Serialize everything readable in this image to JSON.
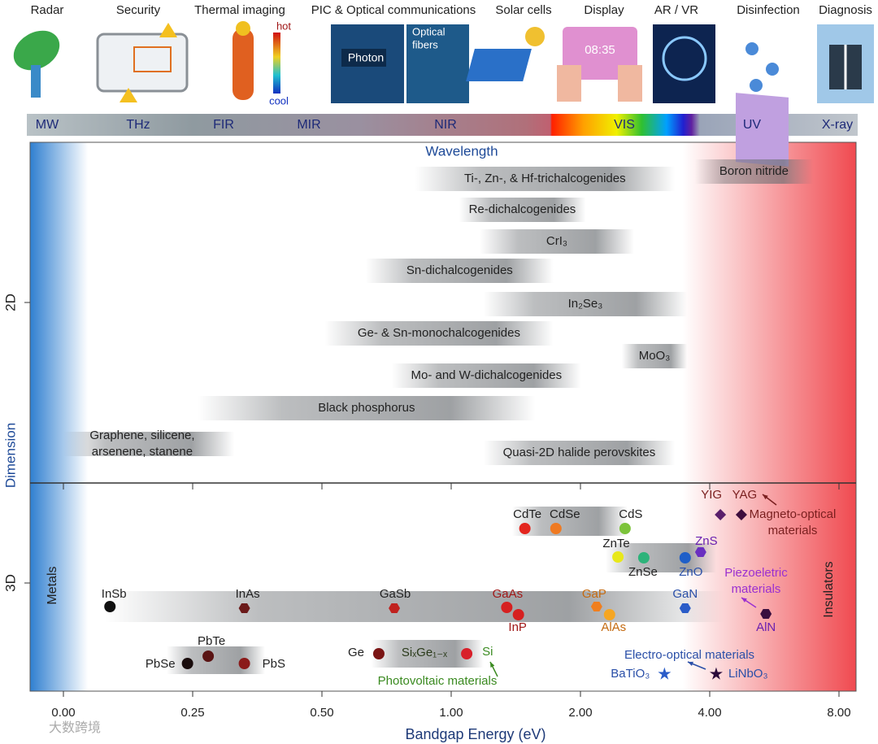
{
  "applications": [
    "Radar",
    "Security",
    "Thermal imaging",
    "PIC & Optical communications",
    "Solar cells",
    "Display",
    "AR / VR",
    "Disinfection",
    "Diagnosis"
  ],
  "icon_texts": {
    "hot": "hot",
    "cool": "cool",
    "photon": "Photon",
    "fibers": [
      "Optical",
      "fibers"
    ],
    "clock": "08:35"
  },
  "spectrum": [
    "MW",
    "THz",
    "FIR",
    "MIR",
    "NIR",
    "VIS",
    "UV",
    "X-ray"
  ],
  "watermark": "大数跨境",
  "chart_data": {
    "type": "bandgap-map",
    "x_label": "Bandgap Energy (eV)",
    "y_label": "Dimension",
    "top_label": "Wavelength",
    "left_label": "Metals",
    "right_label": "Insulators",
    "categories": [
      "2D",
      "3D"
    ],
    "xlim": [
      -0.065,
      8.53
    ],
    "xticks": [
      {
        "value": 0,
        "label": "0.00"
      },
      {
        "value": 0.25,
        "label": "0.25"
      },
      {
        "value": 0.5,
        "label": "0.50"
      },
      {
        "value": 1,
        "label": "1.00"
      },
      {
        "value": 2,
        "label": "2.00"
      },
      {
        "value": 4,
        "label": "4.00"
      },
      {
        "value": 8,
        "label": "8.00"
      }
    ],
    "ranges_2d": [
      {
        "name": "Ti-, Zn-, & Hf-trichalcogenides",
        "range": [
          0.86,
          3.46
        ]
      },
      {
        "name": "Boron nitride",
        "range": [
          3.77,
          7.2
        ]
      },
      {
        "name": "Re-dichalcogenides",
        "range": [
          1.06,
          2.08
        ]
      },
      {
        "name": "CrI₃",
        "range": [
          1.22,
          2.83
        ]
      },
      {
        "name": "Sn-dichalcogenides",
        "range": [
          0.67,
          1.79
        ]
      },
      {
        "name": "In₂Se₃",
        "range": [
          1.25,
          3.65
        ]
      },
      {
        "name": "Ge- & Sn-monochalcogenides",
        "range": [
          0.51,
          1.79
        ]
      },
      {
        "name": "MoO₃",
        "range": [
          2.64,
          3.65
        ]
      },
      {
        "name": "Mo- and W-dichalcogenides",
        "range": [
          0.77,
          2.01
        ]
      },
      {
        "name": "Black phosphorus",
        "range": [
          0.26,
          1.65
        ]
      },
      {
        "name": [
          "Graphene, silicene,",
          "arsenene, stanene"
        ],
        "range": [
          0.0,
          0.33
        ]
      },
      {
        "name": "Quasi-2D halide perovskites",
        "range": [
          1.25,
          3.46
        ]
      }
    ],
    "bands_3d": [
      {
        "range": [
          0.08,
          4.43
        ]
      },
      {
        "range": [
          0.2,
          0.39
        ]
      },
      {
        "range": [
          0.69,
          1.25
        ]
      },
      {
        "range": [
          1.47,
          2.73
        ]
      },
      {
        "range": [
          2.39,
          4.2
        ]
      }
    ],
    "materials": [
      {
        "name": "InSb",
        "bandgap": 0.09,
        "marker": "circle",
        "color": "#111111",
        "label_color": "#222222"
      },
      {
        "name": "InAs",
        "bandgap": 0.35,
        "marker": "hexagon",
        "color": "#6b1a1a",
        "label_color": "#222222"
      },
      {
        "name": "GaSb",
        "bandgap": 0.78,
        "marker": "hexagon",
        "color": "#c0221f",
        "label_color": "#222222"
      },
      {
        "name": "GaAs",
        "bandgap": 1.43,
        "marker": "circle",
        "color": "#d62020",
        "label_color": "#a01818"
      },
      {
        "name": "InP",
        "bandgap": 1.52,
        "marker": "circle",
        "color": "#d62020",
        "label_color": "#a01818"
      },
      {
        "name": "GaP",
        "bandgap": 2.25,
        "marker": "hexagon",
        "color": "#f07f1f",
        "label_color": "#c46a10"
      },
      {
        "name": "AlAs",
        "bandgap": 2.45,
        "marker": "circle",
        "color": "#f5a623",
        "label_color": "#c46a10"
      },
      {
        "name": "GaN",
        "bandgap": 3.62,
        "marker": "hexagon",
        "color": "#2a5cc8",
        "label_color": "#2a4fa8"
      },
      {
        "name": "AlN",
        "bandgap": 5.74,
        "marker": "hexagon",
        "color": "#3a0f3f",
        "label_color": "#6a20b0"
      },
      {
        "name": "CdTe",
        "bandgap": 1.57,
        "marker": "circle",
        "color": "#e3251e",
        "label_color": "#222222"
      },
      {
        "name": "CdSe",
        "bandgap": 1.81,
        "marker": "circle",
        "color": "#ef7a22",
        "label_color": "#222222"
      },
      {
        "name": "CdS",
        "bandgap": 2.69,
        "marker": "circle",
        "color": "#7cc33b",
        "label_color": "#222222"
      },
      {
        "name": "ZnTe",
        "bandgap": 2.58,
        "marker": "circle",
        "color": "#e8e81a",
        "label_color": "#222222"
      },
      {
        "name": "ZnSe",
        "bandgap": 2.98,
        "marker": "circle",
        "color": "#2db37a",
        "label_color": "#222222"
      },
      {
        "name": "ZnO",
        "bandgap": 3.62,
        "marker": "circle",
        "color": "#1f5fc8",
        "label_color": "#2a4fa8"
      },
      {
        "name": "ZnS",
        "bandgap": 3.86,
        "marker": "hexagon",
        "color": "#6a2fc0",
        "label_color": "#6a20b0"
      },
      {
        "name": "YIG",
        "bandgap": 4.33,
        "marker": "diamond",
        "color": "#5a1f6b",
        "label_color": "#7a1f1f"
      },
      {
        "name": "YAG",
        "bandgap": 4.98,
        "marker": "diamond",
        "color": "#3d0d3d",
        "label_color": "#7a1f1f"
      },
      {
        "name": "PbSe",
        "bandgap": 0.24,
        "marker": "circle",
        "color": "#1a0d0d",
        "label_color": "#222222"
      },
      {
        "name": "PbTe",
        "bandgap": 0.28,
        "marker": "circle",
        "color": "#5a1414",
        "label_color": "#222222"
      },
      {
        "name": "PbS",
        "bandgap": 0.35,
        "marker": "circle",
        "color": "#8b1a1a",
        "label_color": "#222222"
      },
      {
        "name": "Ge",
        "bandgap": 0.72,
        "marker": "circle",
        "color": "#7a1414",
        "label_color": "#222222"
      },
      {
        "name": "Si",
        "bandgap": 1.12,
        "marker": "circle",
        "color": "#d8202a",
        "label_color": "#3a8a20"
      },
      {
        "name": "BaTiO₃",
        "bandgap": 3.3,
        "marker": "star",
        "color": "#2a5cc8",
        "label_color": "#2a4fa8"
      },
      {
        "name": "LiNbO₃",
        "bandgap": 4.2,
        "marker": "star",
        "color": "#2a0a3a",
        "label_color": "#2a4fa8"
      }
    ],
    "alloy_label": "SiₓGe₁₋ₓ",
    "annotations": [
      {
        "text": [
          "Magneto-optical",
          "materials"
        ],
        "color": "#7a1f1f"
      },
      {
        "text": [
          "Piezoeletric",
          "materials"
        ],
        "color": "#9b30d0"
      },
      {
        "text": [
          "Electro-optical materials"
        ],
        "color": "#2a4fa8"
      },
      {
        "text": [
          "Photovoltaic materials"
        ],
        "color": "#3a8a20"
      }
    ]
  }
}
